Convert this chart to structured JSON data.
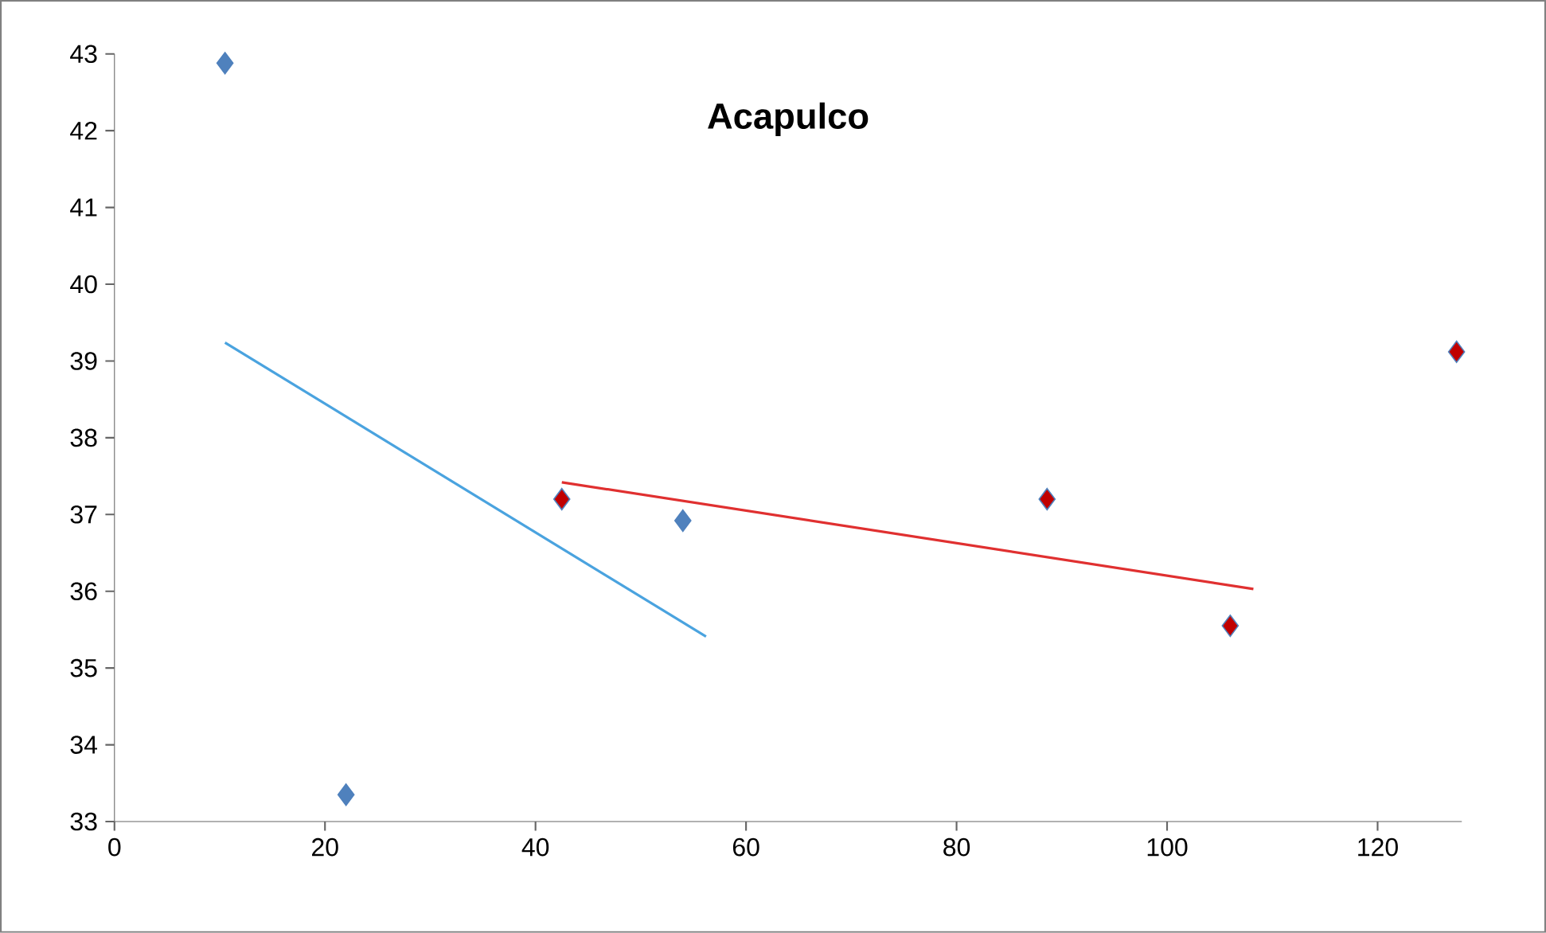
{
  "chart_data": {
    "type": "scatter",
    "title": "Acapulco",
    "xlim": [
      0,
      128
    ],
    "xticks": [
      0,
      20,
      40,
      60,
      80,
      100,
      120
    ],
    "ylim": [
      33,
      43
    ],
    "yticks": [
      33,
      34,
      35,
      36,
      37,
      38,
      39,
      40,
      41,
      42,
      43
    ],
    "marker": "diamond",
    "series": [
      {
        "color": "#4f81bd",
        "x": [
          10.5,
          22,
          54
        ],
        "values": [
          42.88,
          33.35,
          36.92
        ]
      },
      {
        "color": "#c00000",
        "x": [
          42.5,
          88.6,
          106,
          127.5
        ],
        "values": [
          37.2,
          37.2,
          35.55,
          39.12
        ]
      },
      {
        "type": "line",
        "marker": "none",
        "color": "#4aa3df",
        "x": [
          10.5,
          56.2
        ],
        "values": [
          39.24,
          35.41
        ]
      },
      {
        "type": "line",
        "marker": "none",
        "color": "#e03030",
        "x": [
          42.5,
          108.2
        ],
        "values": [
          37.42,
          36.03
        ]
      }
    ]
  }
}
